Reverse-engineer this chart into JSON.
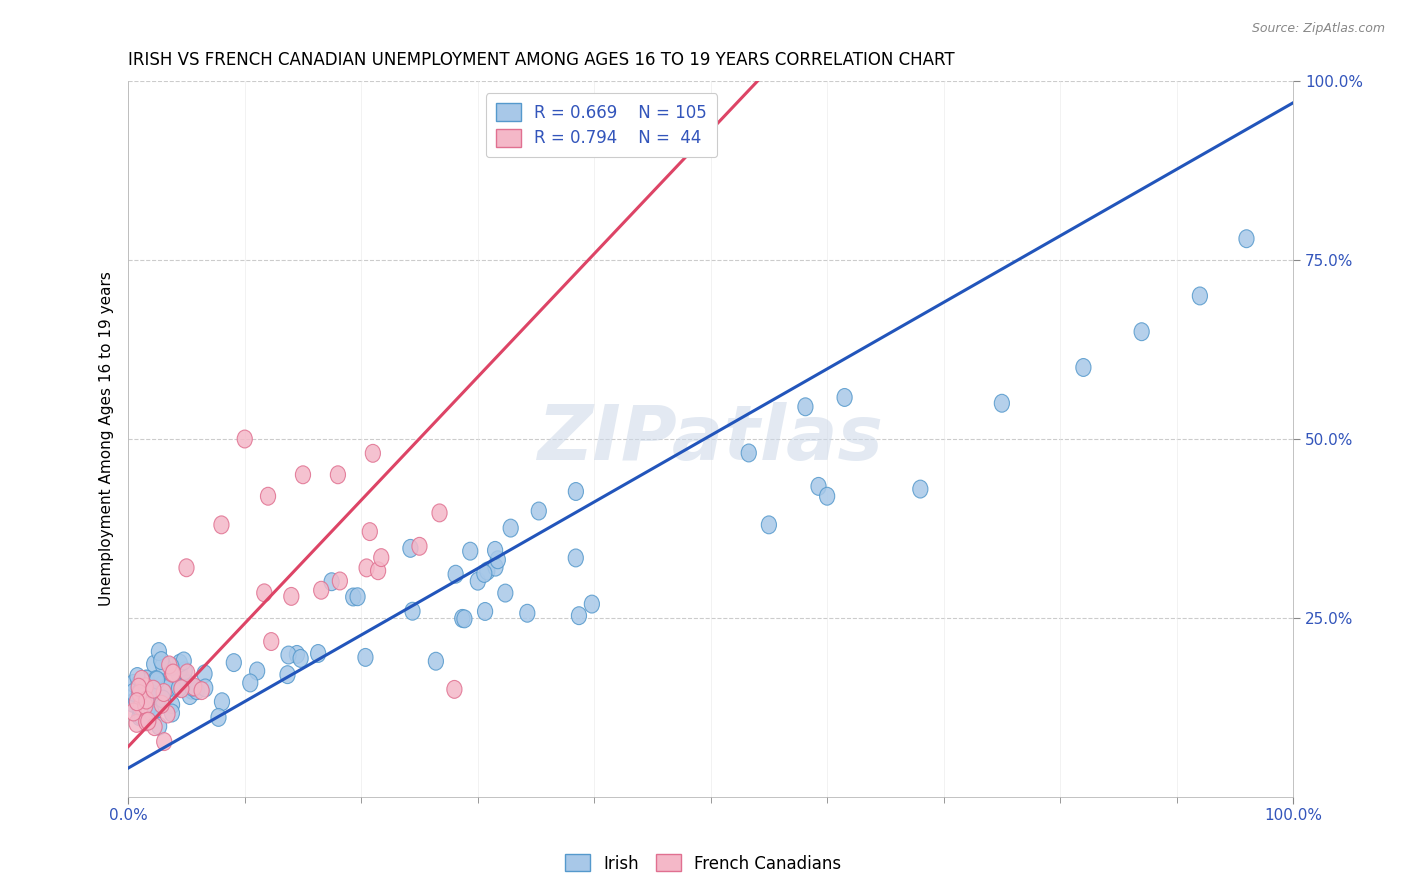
{
  "title": "IRISH VS FRENCH CANADIAN UNEMPLOYMENT AMONG AGES 16 TO 19 YEARS CORRELATION CHART",
  "source_text": "Source: ZipAtlas.com",
  "ylabel": "Unemployment Among Ages 16 to 19 years",
  "watermark": "ZIPatlas",
  "irish_color": "#a8c8e8",
  "irish_edge_color": "#5599cc",
  "french_color": "#f4b8c8",
  "french_edge_color": "#e07090",
  "irish_line_color": "#2255bb",
  "french_line_color": "#dd4466",
  "irish_R": 0.669,
  "irish_N": 105,
  "french_R": 0.794,
  "french_N": 44,
  "xlim": [
    0.0,
    1.0
  ],
  "ylim": [
    0.0,
    1.0
  ],
  "x_tick_labels": [
    "0.0%",
    "100.0%"
  ],
  "y_ticks": [
    0.25,
    0.5,
    0.75,
    1.0
  ],
  "y_tick_labels": [
    "25.0%",
    "50.0%",
    "75.0%",
    "100.0%"
  ],
  "grid_color": "#cccccc",
  "background_color": "#ffffff",
  "legend_irish_label": "Irish",
  "legend_french_label": "French Canadians",
  "title_fontsize": 12,
  "axis_label_fontsize": 11,
  "tick_fontsize": 11,
  "legend_fontsize": 12,
  "irish_seed": 42,
  "french_seed": 13,
  "irish_line_x0": 0.0,
  "irish_line_y0": 0.04,
  "irish_line_x1": 1.0,
  "irish_line_y1": 0.97,
  "french_line_x0": 0.0,
  "french_line_y0": 0.07,
  "french_line_x1": 0.54,
  "french_line_y1": 1.0
}
